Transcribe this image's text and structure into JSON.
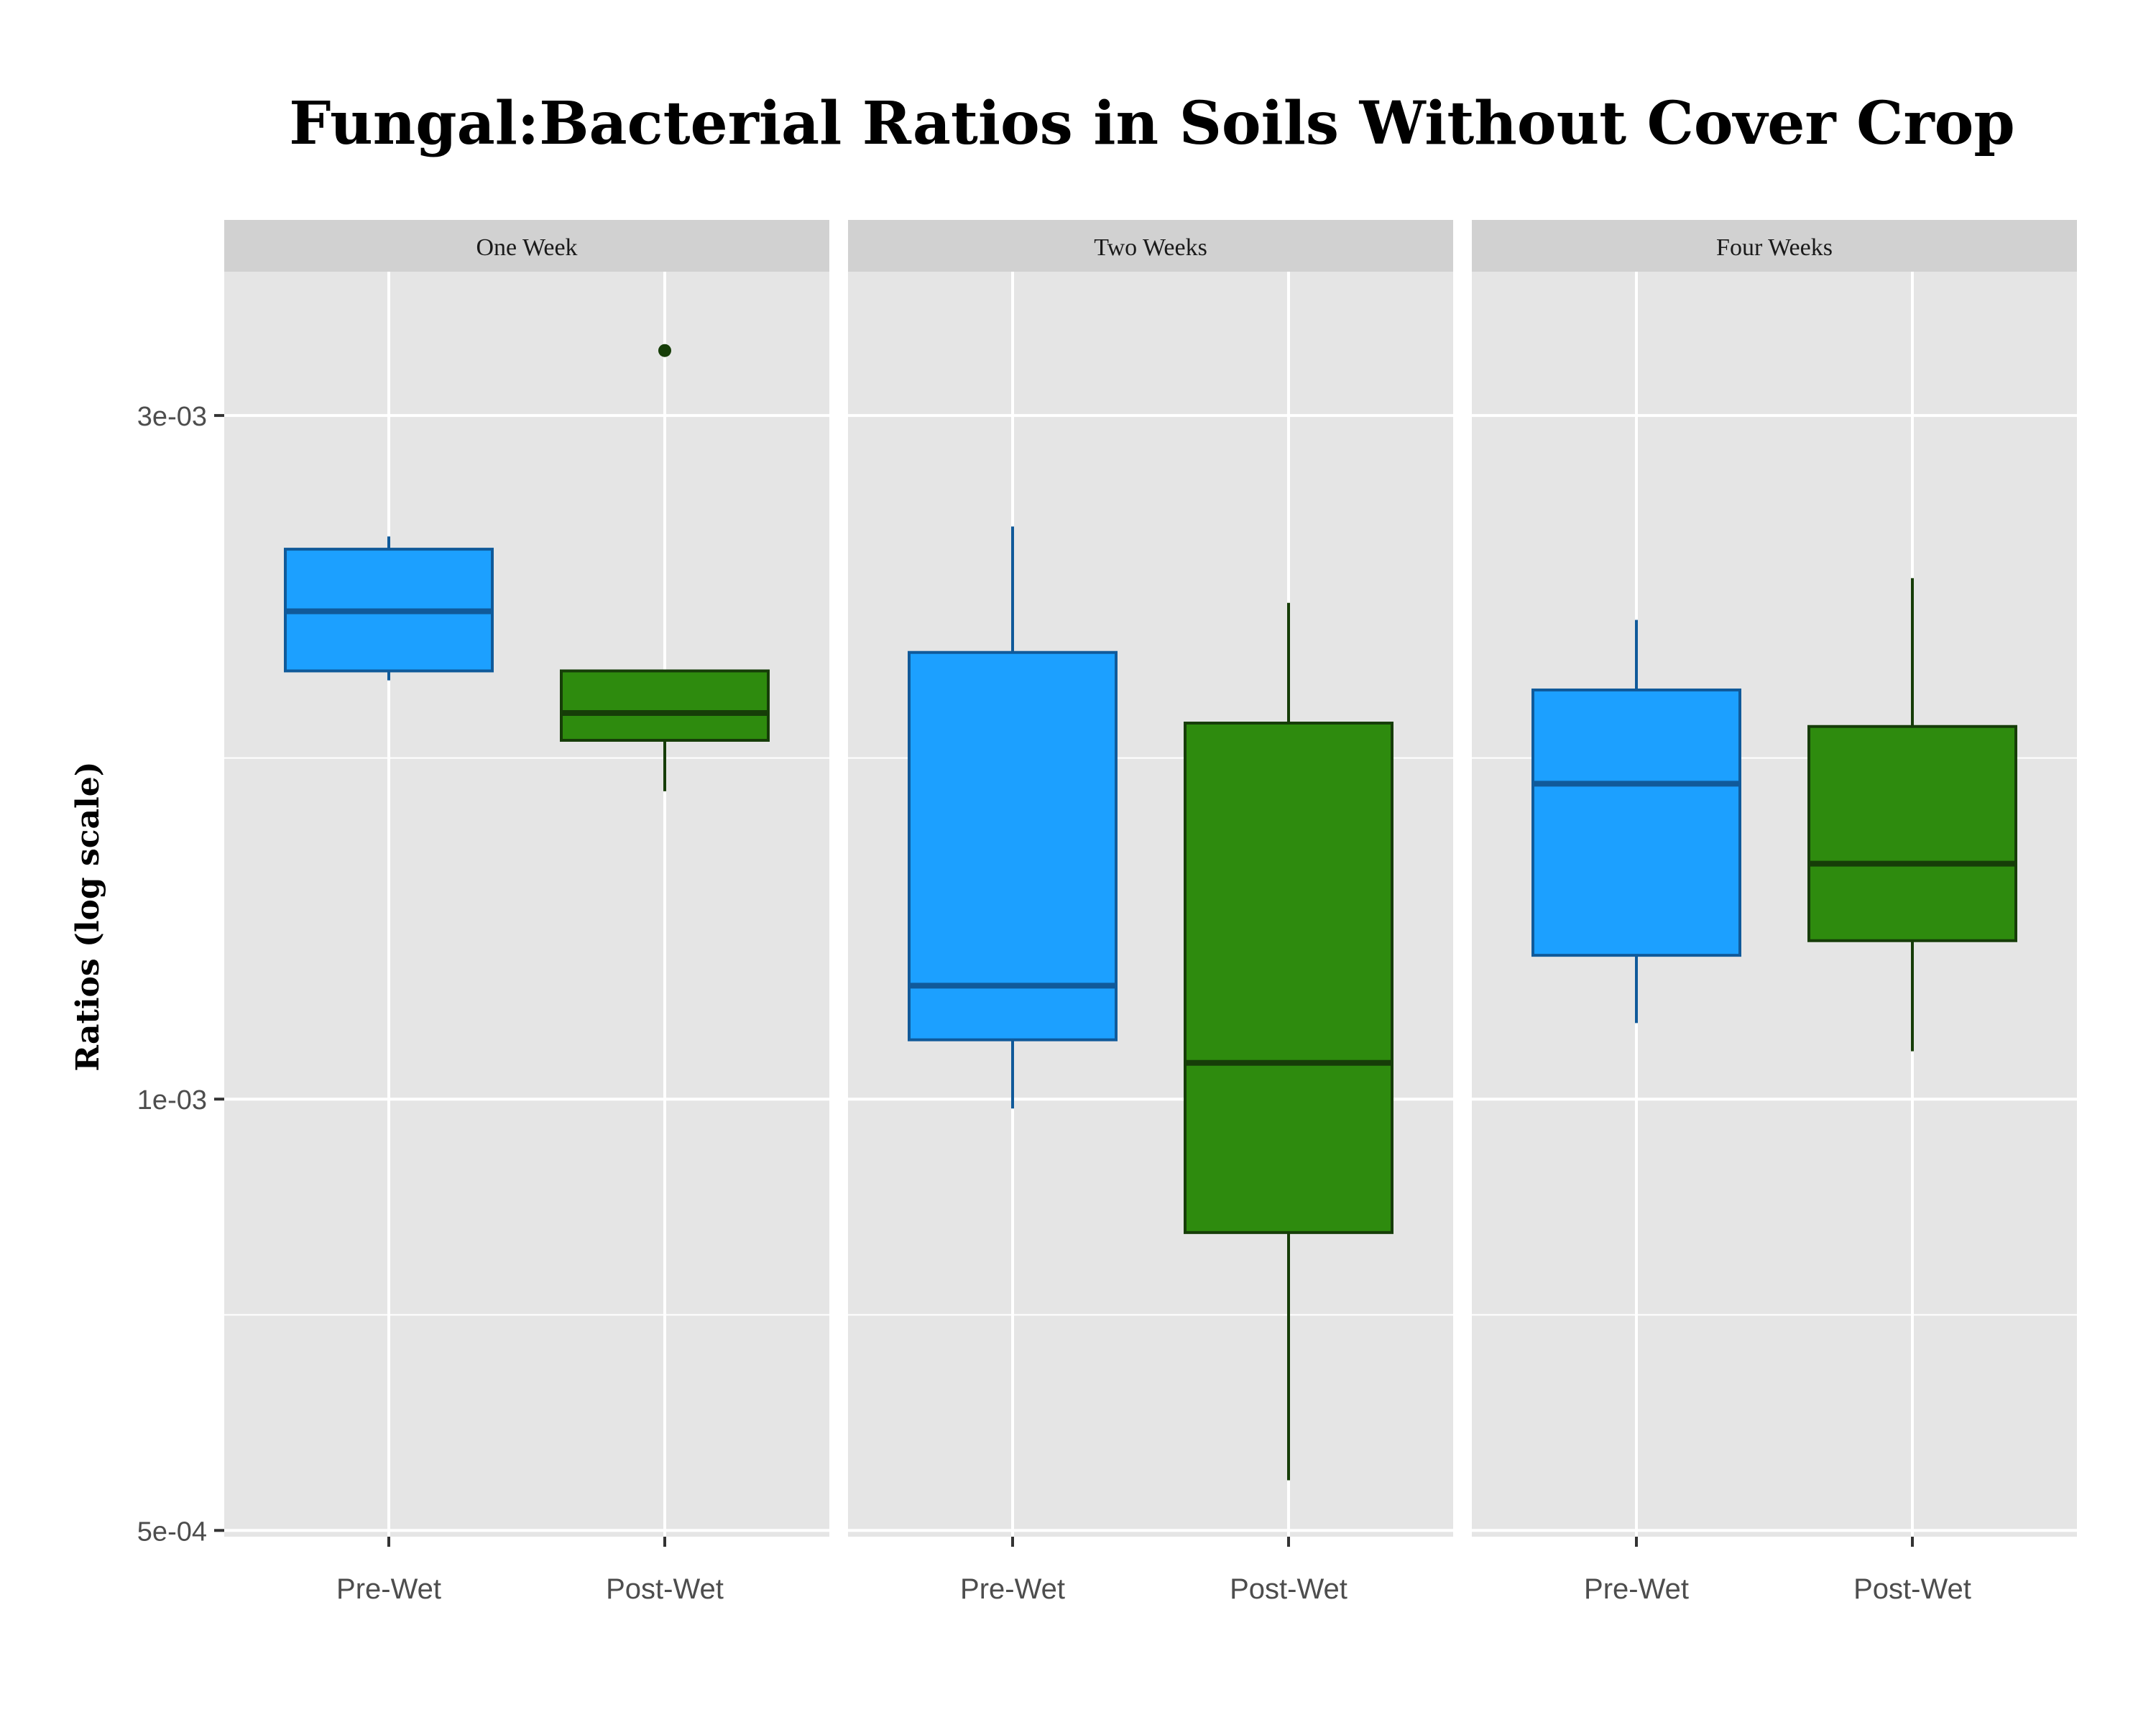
{
  "chart_data": {
    "type": "boxplot",
    "title": "Fungal:Bacterial Ratios in Soils Without Cover Crop",
    "ylabel": "Ratios (log scale)",
    "xlabel": "",
    "y_scale": "log10",
    "ylim": [
      0.000495,
      0.00378
    ],
    "y_ticks": [
      {
        "value": 0.0005,
        "label": "5e-04"
      },
      {
        "value": 0.001,
        "label": "1e-03"
      },
      {
        "value": 0.003,
        "label": "3e-03"
      }
    ],
    "y_minor_ticks": [
      0.000707,
      0.00173
    ],
    "categories": [
      "Pre-Wet",
      "Post-Wet"
    ],
    "colors": {
      "Pre-Wet": {
        "fill": "#1ca0ff",
        "line": "#105a9a"
      },
      "Post-Wet": {
        "fill": "#2e8b0e",
        "line": "#163d08"
      },
      "panel_bg": "#e5e5e5",
      "strip_bg": "#d1d1d1",
      "grid": "#ffffff"
    },
    "legend": "none",
    "grid": true,
    "panels": [
      {
        "label": "One Week",
        "boxes": [
          {
            "category": "Pre-Wet",
            "whisker_low": 0.00196,
            "q1": 0.00199,
            "median": 0.00219,
            "q3": 0.00242,
            "whisker_high": 0.00247,
            "outliers": []
          },
          {
            "category": "Post-Wet",
            "whisker_low": 0.00164,
            "q1": 0.00178,
            "median": 0.00186,
            "q3": 0.00199,
            "whisker_high": 0.00199,
            "outliers": [
              0.00333
            ]
          }
        ]
      },
      {
        "label": "Two Weeks",
        "boxes": [
          {
            "category": "Pre-Wet",
            "whisker_low": 0.000985,
            "q1": 0.0011,
            "median": 0.0012,
            "q3": 0.00205,
            "whisker_high": 0.00251,
            "outliers": []
          },
          {
            "category": "Post-Wet",
            "whisker_low": 0.000542,
            "q1": 0.000807,
            "median": 0.00106,
            "q3": 0.00183,
            "whisker_high": 0.00222,
            "outliers": []
          }
        ]
      },
      {
        "label": "Four Weeks",
        "boxes": [
          {
            "category": "Pre-Wet",
            "whisker_low": 0.00113,
            "q1": 0.00126,
            "median": 0.00166,
            "q3": 0.00193,
            "whisker_high": 0.00216,
            "outliers": []
          },
          {
            "category": "Post-Wet",
            "whisker_low": 0.00108,
            "q1": 0.00129,
            "median": 0.00146,
            "q3": 0.00182,
            "whisker_high": 0.00231,
            "outliers": []
          }
        ]
      }
    ]
  }
}
